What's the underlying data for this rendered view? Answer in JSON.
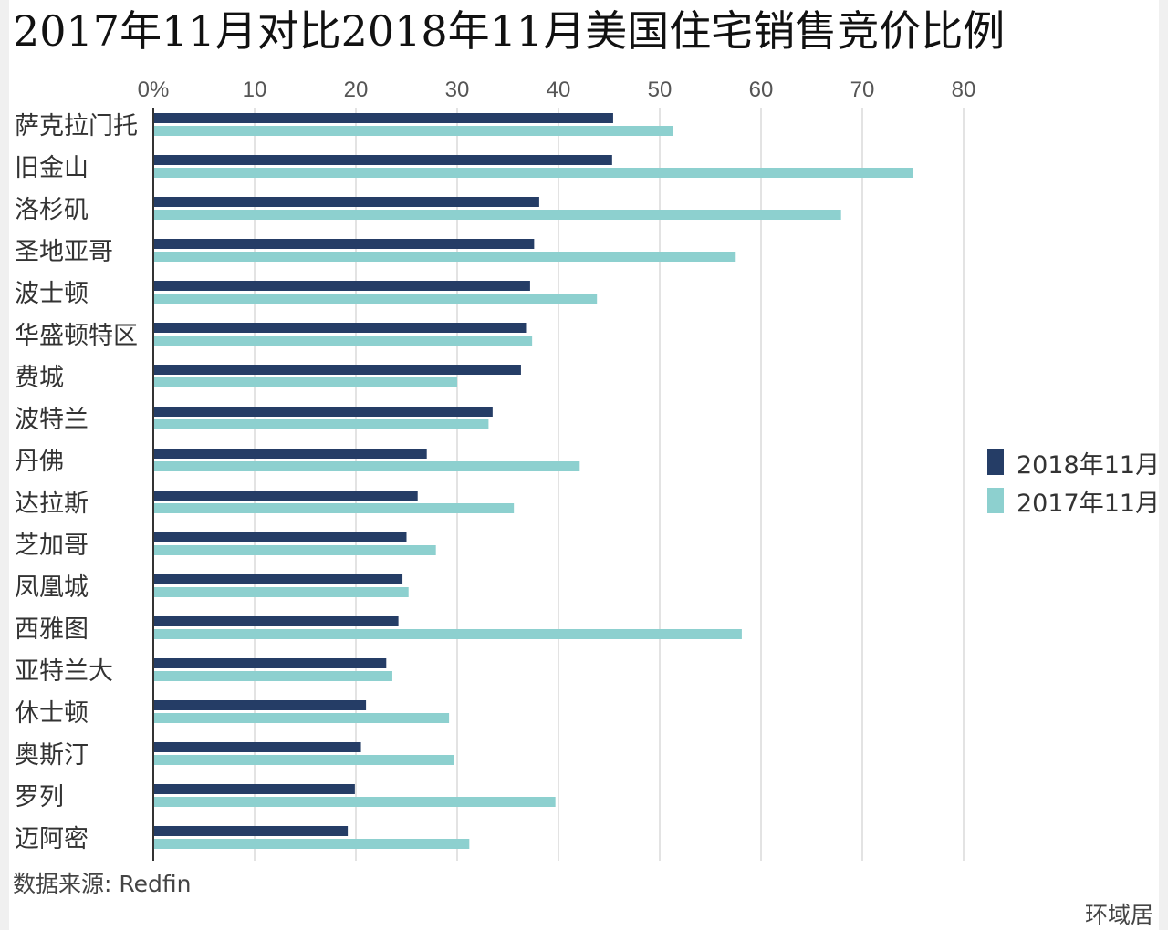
{
  "title": "2017年11月对比2018年11月美国住宅销售竞价比例",
  "source": "数据来源: Redfin",
  "brand": "环域居",
  "colors": {
    "series_2018": "#253d66",
    "series_2017": "#8dd0cf"
  },
  "chart_data": {
    "type": "bar",
    "orientation": "horizontal",
    "title": "2017年11月对比2018年11月美国住宅销售竞价比例",
    "xlim": [
      0,
      80
    ],
    "x_ticks": [
      "0%",
      "10",
      "20",
      "30",
      "40",
      "50",
      "60",
      "70",
      "80"
    ],
    "x_tick_values": [
      0,
      10,
      20,
      30,
      40,
      50,
      60,
      70,
      80
    ],
    "grid": true,
    "legend_position": "right",
    "categories": [
      "萨克拉门托",
      "旧金山",
      "洛杉矶",
      "圣地亚哥",
      "波士顿",
      "华盛顿特区",
      "费城",
      "波特兰",
      "丹佛",
      "达拉斯",
      "芝加哥",
      "凤凰城",
      "西雅图",
      "亚特兰大",
      "休士顿",
      "奥斯汀",
      "罗列",
      "迈阿密"
    ],
    "series": [
      {
        "name": "2018年11月",
        "values": [
          45.4,
          45.3,
          38.1,
          37.6,
          37.2,
          36.8,
          36.3,
          33.5,
          27.0,
          26.1,
          25.0,
          24.6,
          24.2,
          23.0,
          21.0,
          20.5,
          19.9,
          19.2
        ]
      },
      {
        "name": "2017年11月",
        "values": [
          51.3,
          75.0,
          67.9,
          57.5,
          43.8,
          37.4,
          30.0,
          33.1,
          42.1,
          35.6,
          27.9,
          25.2,
          58.1,
          23.6,
          29.2,
          29.7,
          39.7,
          31.2
        ]
      }
    ]
  }
}
